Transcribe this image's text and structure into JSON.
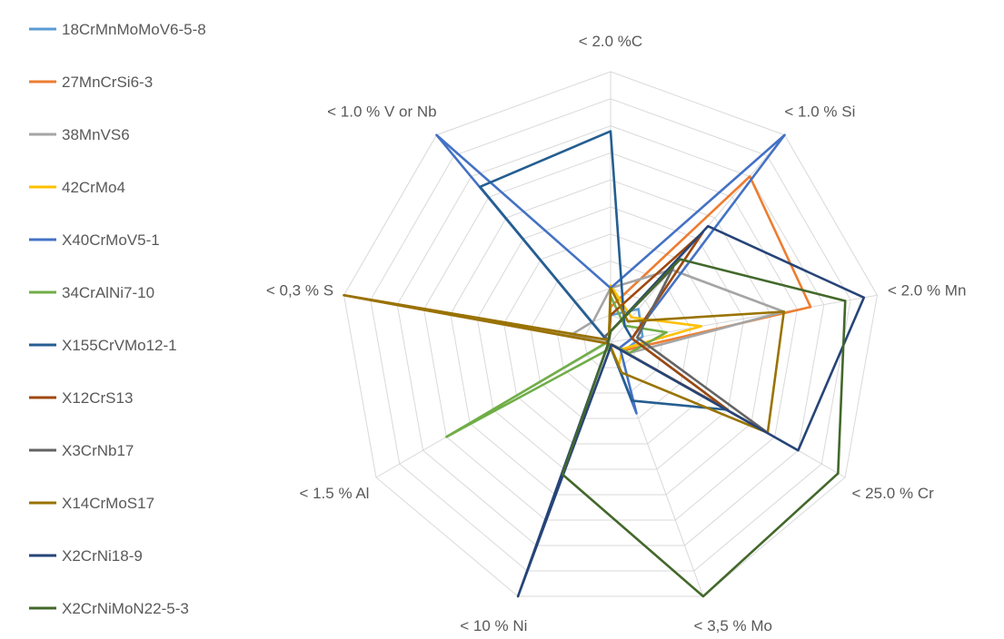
{
  "chart_data": {
    "type": "radar",
    "title": "",
    "axes": [
      "< 2.0 %C",
      "< 1.0 % Si",
      "< 2.0 % Mn",
      "< 25.0 % Cr",
      "< 3,5 % Mo",
      "< 10 % Ni",
      "< 1.5 % Al",
      "< 0,3 % S",
      "< 1.0 % V or Nb"
    ],
    "rlim": [
      0,
      10
    ],
    "grid": true,
    "legend_position": "left",
    "series": [
      {
        "name": "18CrMnMoMoV6-5-8",
        "color": "#5b9bd5",
        "values": [
          1.0,
          1.6,
          1.2,
          0.6,
          0.1,
          0.3,
          0.1,
          0.1,
          0.1
        ]
      },
      {
        "name": "27MnCrSi6-3",
        "color": "#ed7d31",
        "values": [
          1.3,
          8.0,
          7.5,
          0.6,
          0.1,
          0.1,
          0.1,
          0.1,
          0.1
        ]
      },
      {
        "name": "38MnVS6",
        "color": "#a5a5a5",
        "values": [
          2.0,
          3.5,
          6.5,
          0.8,
          0.1,
          0.1,
          0.1,
          1.5,
          1.0
        ]
      },
      {
        "name": "42CrMo4",
        "color": "#ffc000",
        "values": [
          2.1,
          1.2,
          3.4,
          0.5,
          0.9,
          0.1,
          0.1,
          0.1,
          0.1
        ]
      },
      {
        "name": "X40CrMoV5-1",
        "color": "#4472c4",
        "values": [
          2.0,
          10.0,
          0.8,
          0.4,
          2.8,
          0.1,
          0.1,
          0.1,
          10.0
        ]
      },
      {
        "name": "34CrAlNi7-10",
        "color": "#70ad47",
        "values": [
          1.7,
          0.8,
          2.1,
          0.8,
          0.1,
          0.3,
          7.0,
          0.1,
          0.1
        ]
      },
      {
        "name": "X155CrVMo12-1",
        "color": "#255e91",
        "values": [
          7.8,
          0.8,
          0.8,
          5.0,
          2.3,
          0.1,
          0.1,
          0.1,
          7.5
        ]
      },
      {
        "name": "X12CrS13",
        "color": "#9e480e",
        "values": [
          1.0,
          5.3,
          0.8,
          5.0,
          0.1,
          0.1,
          0.1,
          10.0,
          0.1
        ]
      },
      {
        "name": "X3CrNb17",
        "color": "#636363",
        "values": [
          0.4,
          3.6,
          1.0,
          6.7,
          0.1,
          0.1,
          0.1,
          0.1,
          0.3
        ]
      },
      {
        "name": "X14CrMoS17",
        "color": "#997300",
        "values": [
          2.0,
          1.0,
          6.5,
          6.7,
          1.2,
          0.1,
          0.1,
          10.0,
          0.1
        ]
      },
      {
        "name": "X2CrNi18-9",
        "color": "#264478",
        "values": [
          0.4,
          5.6,
          9.5,
          8.0,
          0.1,
          10.0,
          0.1,
          0.1,
          0.1
        ]
      },
      {
        "name": "X2CrNiMoN22-5-3",
        "color": "#43682b",
        "values": [
          0.4,
          4.0,
          8.8,
          9.7,
          10.0,
          5.2,
          0.1,
          0.1,
          0.1
        ]
      }
    ]
  }
}
